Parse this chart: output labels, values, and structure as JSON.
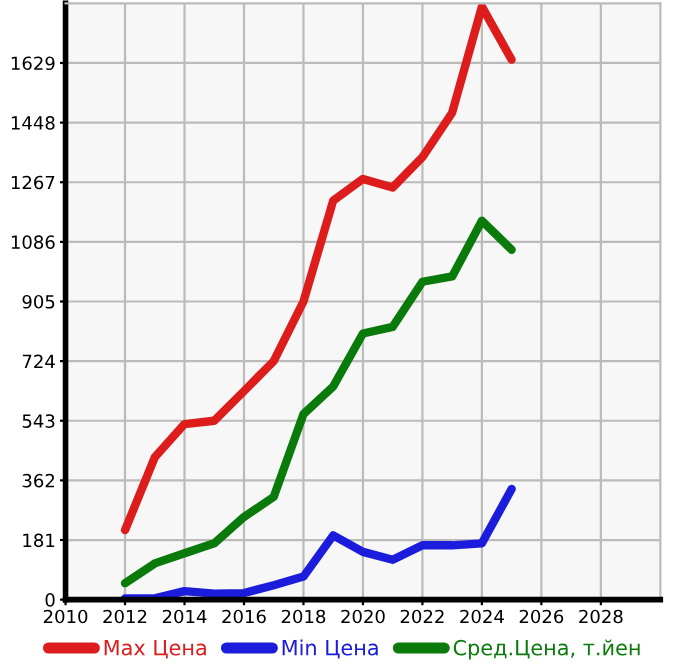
{
  "chart_data": {
    "type": "line",
    "x": [
      2012,
      2013,
      2014,
      2015,
      2016,
      2017,
      2018,
      2019,
      2020,
      2021,
      2022,
      2023,
      2024,
      2025
    ],
    "series": [
      {
        "name": "Max Цена",
        "color": "#dd1c1c",
        "values": [
          211,
          432,
          533,
          543,
          633,
          724,
          905,
          1211,
          1277,
          1251,
          1343,
          1478,
          1800,
          1639
        ]
      },
      {
        "name": "Min Цена",
        "color": "#1c1cdd",
        "values": [
          4,
          4,
          26,
          18,
          20,
          44,
          70,
          195,
          145,
          121,
          165,
          165,
          171,
          336
        ]
      },
      {
        "name": "Сред.Цена, т.йен",
        "color": "#0a7a0a",
        "values": [
          50,
          110,
          141,
          171,
          251,
          312,
          563,
          647,
          808,
          828,
          965,
          981,
          1150,
          1062
        ]
      }
    ],
    "xlim": [
      2010,
      2030
    ],
    "xticks": [
      2010,
      2012,
      2014,
      2016,
      2018,
      2020,
      2022,
      2024,
      2026,
      2028
    ],
    "ylim": [
      0,
      1810
    ],
    "yticks": [
      0,
      181,
      362,
      543,
      724,
      905,
      1086,
      1267,
      1448,
      1629
    ],
    "grid": true,
    "legend": "bottom",
    "marker": "none",
    "line_style": "solid"
  }
}
